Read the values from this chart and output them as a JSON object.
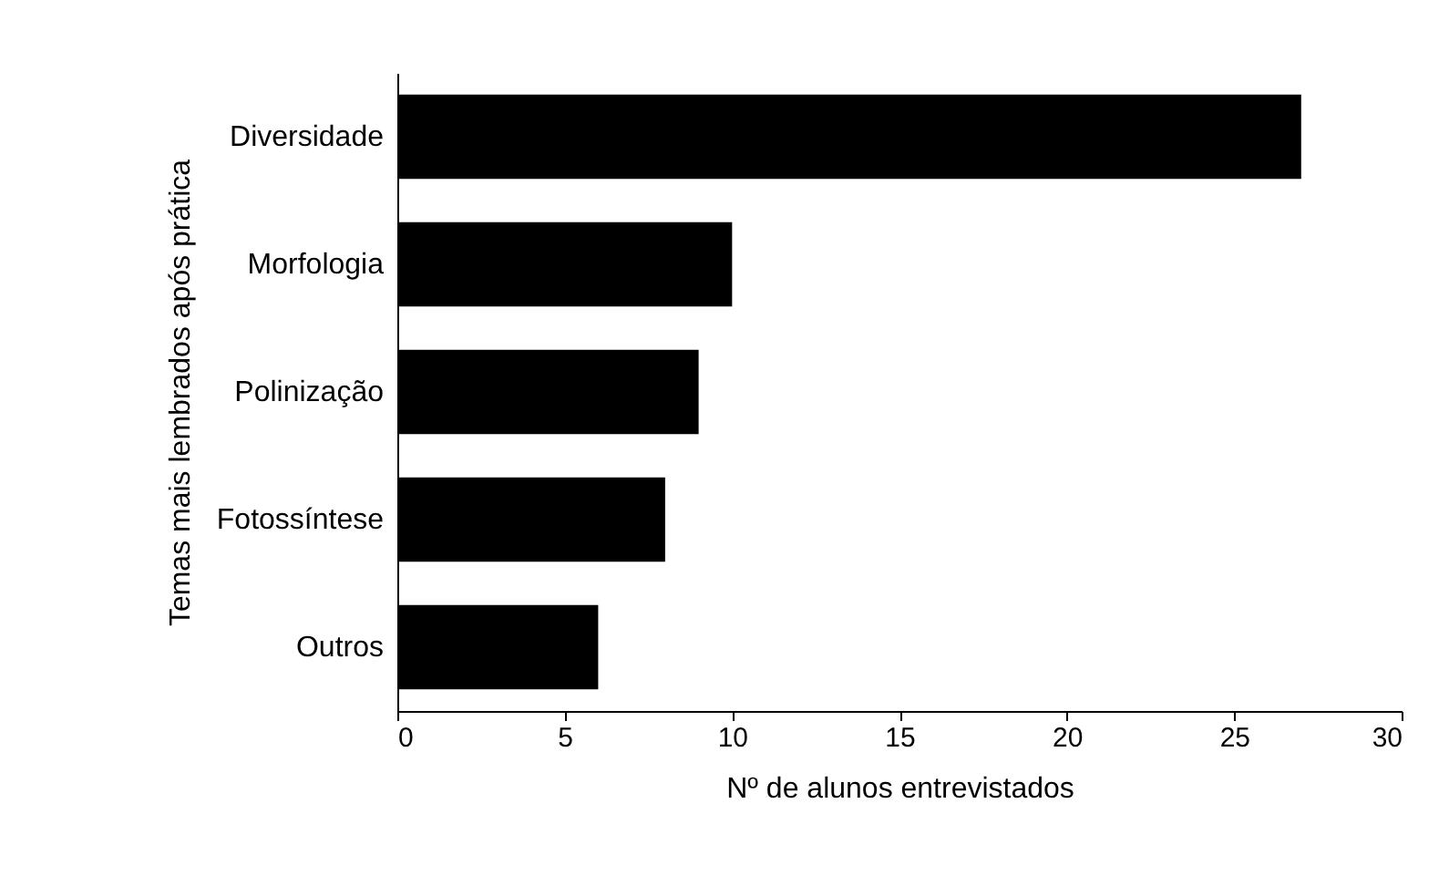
{
  "chart_data": {
    "type": "bar",
    "orientation": "horizontal",
    "xlabel": "Nº de alunos entrevistados",
    "ylabel": "Temas mais lembrados após prática",
    "categories": [
      "Diversidade",
      "Morfologia",
      "Polinização",
      "Fotossíntese",
      "Outros"
    ],
    "values": [
      27,
      10,
      9,
      8,
      6
    ],
    "color": "#000000",
    "xlim": [
      0,
      30
    ],
    "xticks": [
      0,
      5,
      10,
      15,
      20,
      25,
      30
    ],
    "grid": false
  }
}
